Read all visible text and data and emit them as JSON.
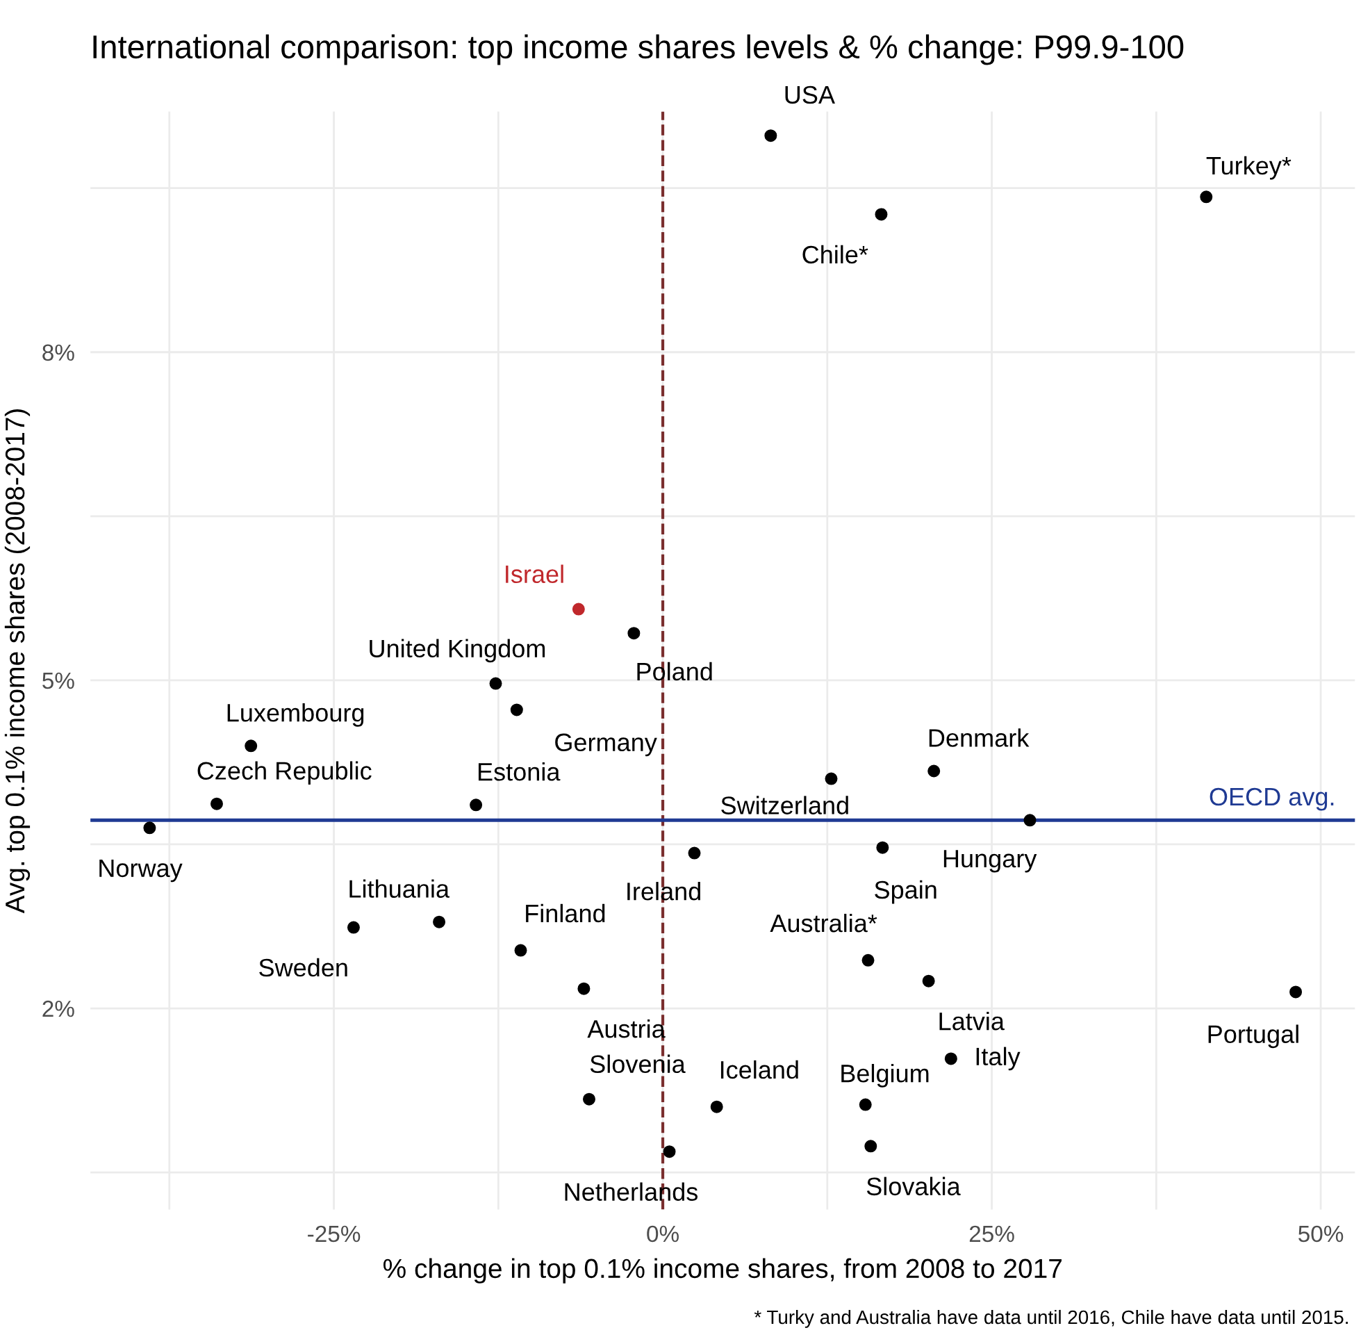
{
  "chart_data": {
    "type": "scatter",
    "title": "International comparison: top income shares levels & % change: P99.9-100",
    "xlabel": "% change in top 0.1% income shares, from 2008 to 2017",
    "ylabel": "Avg. top 0.1% income shares (2008-2017)",
    "xlim": [
      -43.5,
      52.6
    ],
    "ylim": [
      0.16,
      10.2
    ],
    "xticks": [
      {
        "value": -37.5,
        "label": null
      },
      {
        "value": -25,
        "label": "-25%"
      },
      {
        "value": -12.5,
        "label": null
      },
      {
        "value": 0,
        "label": "0%"
      },
      {
        "value": 12.5,
        "label": null
      },
      {
        "value": 25,
        "label": "25%"
      },
      {
        "value": 37.5,
        "label": null
      },
      {
        "value": 50,
        "label": "50%"
      }
    ],
    "yticks": [
      {
        "value": 0.5,
        "label": null
      },
      {
        "value": 2,
        "label": "2%"
      },
      {
        "value": 3.5,
        "label": null
      },
      {
        "value": 5,
        "label": "5%"
      },
      {
        "value": 6.5,
        "label": null
      },
      {
        "value": 8,
        "label": "8%"
      },
      {
        "value": 9.5,
        "label": null
      }
    ],
    "grid": true,
    "marker": "circle",
    "series": [
      {
        "name": "USA",
        "color": "#000000",
        "x": [
          8.2
        ],
        "values": [
          9.98
        ]
      },
      {
        "name": "Turkey*",
        "color": "#000000",
        "x": [
          41.3
        ],
        "values": [
          9.42
        ]
      },
      {
        "name": "Chile*",
        "color": "#000000",
        "x": [
          16.6
        ],
        "values": [
          9.26
        ]
      },
      {
        "name": "Israel",
        "color": "#c0282c",
        "x": [
          -6.4
        ],
        "values": [
          5.65
        ]
      },
      {
        "name": "Poland",
        "color": "#000000",
        "x": [
          -2.2
        ],
        "values": [
          5.43
        ]
      },
      {
        "name": "United Kingdom",
        "color": "#000000",
        "x": [
          -12.7
        ],
        "values": [
          4.97
        ]
      },
      {
        "name": "Germany",
        "color": "#000000",
        "x": [
          -11.1
        ],
        "values": [
          4.73
        ]
      },
      {
        "name": "Luxembourg",
        "color": "#000000",
        "x": [
          -31.3
        ],
        "values": [
          4.4
        ]
      },
      {
        "name": "Czech Republic",
        "color": "#000000",
        "x": [
          -33.9
        ],
        "values": [
          3.87
        ]
      },
      {
        "name": "Estonia",
        "color": "#000000",
        "x": [
          -14.2
        ],
        "values": [
          3.86
        ]
      },
      {
        "name": "Norway",
        "color": "#000000",
        "x": [
          -39.0
        ],
        "values": [
          3.65
        ]
      },
      {
        "name": "Switzerland",
        "color": "#000000",
        "x": [
          12.8
        ],
        "values": [
          4.1
        ]
      },
      {
        "name": "Denmark",
        "color": "#000000",
        "x": [
          20.6
        ],
        "values": [
          4.17
        ]
      },
      {
        "name": "Hungary",
        "color": "#000000",
        "x": [
          27.9
        ],
        "values": [
          3.72
        ]
      },
      {
        "name": "Ireland",
        "color": "#000000",
        "x": [
          2.4
        ],
        "values": [
          3.42
        ]
      },
      {
        "name": "Spain",
        "color": "#000000",
        "x": [
          16.7
        ],
        "values": [
          3.47
        ]
      },
      {
        "name": "Lithuania",
        "color": "#000000",
        "x": [
          -17.0
        ],
        "values": [
          2.79
        ]
      },
      {
        "name": "Sweden",
        "color": "#000000",
        "x": [
          -23.5
        ],
        "values": [
          2.74
        ]
      },
      {
        "name": "Finland",
        "color": "#000000",
        "x": [
          -10.8
        ],
        "values": [
          2.53
        ]
      },
      {
        "name": "Australia*",
        "color": "#000000",
        "x": [
          15.6
        ],
        "values": [
          2.44
        ]
      },
      {
        "name": "Latvia",
        "color": "#000000",
        "x": [
          20.2
        ],
        "values": [
          2.25
        ]
      },
      {
        "name": "Portugal",
        "color": "#000000",
        "x": [
          48.1
        ],
        "values": [
          2.15
        ]
      },
      {
        "name": "Austria",
        "color": "#000000",
        "x": [
          -6.0
        ],
        "values": [
          2.18
        ]
      },
      {
        "name": "Italy",
        "color": "#000000",
        "x": [
          21.9
        ],
        "values": [
          1.54
        ]
      },
      {
        "name": "Slovenia",
        "color": "#000000",
        "x": [
          -5.6
        ],
        "values": [
          1.17
        ]
      },
      {
        "name": "Iceland",
        "color": "#000000",
        "x": [
          4.1
        ],
        "values": [
          1.1
        ]
      },
      {
        "name": "Belgium",
        "color": "#000000",
        "x": [
          15.4
        ],
        "values": [
          1.12
        ]
      },
      {
        "name": "Slovakia",
        "color": "#000000",
        "x": [
          15.8
        ],
        "values": [
          0.74
        ]
      },
      {
        "name": "Netherlands",
        "color": "#000000",
        "x": [
          0.5
        ],
        "values": [
          0.69
        ]
      }
    ],
    "ref_lines": [
      {
        "axis": "x",
        "value": 0,
        "color": "#7a2e2e",
        "line_style": "dashed"
      },
      {
        "axis": "y",
        "value": 3.72,
        "label": "OECD avg.",
        "color": "#1f3a93",
        "line_style": "solid"
      }
    ],
    "annotations": [
      "* Turky and Australia have data until 2016, Chile have data until 2015."
    ]
  }
}
